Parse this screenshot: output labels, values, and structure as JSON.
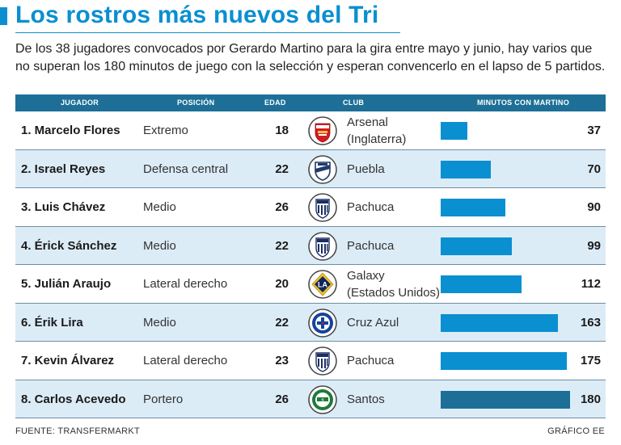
{
  "header": {
    "title": "Los rostros más nuevos del Tri",
    "subtitle": "De los 38 jugadores convocados por Gerardo Martino para la gira entre mayo y junio, hay varios que no superan los 180 minutos de juego con la selección y esperan convencerlo en el lapso de 5 partidos."
  },
  "columns": {
    "player": "JUGADOR",
    "position": "POSICIÓN",
    "age": "EDAD",
    "club": "CLUB",
    "minutes": "MINUTOS CON MARTINO"
  },
  "rows": [
    {
      "name": "1. Marcelo Flores",
      "position": "Extremo",
      "age": "18",
      "club": "Arsenal\n(Inglaterra)",
      "minutes": "37",
      "logo": "arsenal-logo"
    },
    {
      "name": "2. Israel Reyes",
      "position": "Defensa central",
      "age": "22",
      "club": "Puebla",
      "minutes": "70",
      "logo": "puebla-logo"
    },
    {
      "name": "3. Luis Chávez",
      "position": "Medio",
      "age": "26",
      "club": "Pachuca",
      "minutes": "90",
      "logo": "pachuca-logo"
    },
    {
      "name": "4. Érick Sánchez",
      "position": "Medio",
      "age": "22",
      "club": "Pachuca",
      "minutes": "99",
      "logo": "pachuca-logo"
    },
    {
      "name": "5. Julián Araujo",
      "position": "Lateral derecho",
      "age": "20",
      "club": "Galaxy\n(Estados Unidos)",
      "minutes": "112",
      "logo": "galaxy-logo"
    },
    {
      "name": "6. Érik Lira",
      "position": "Medio",
      "age": "22",
      "club": "Cruz Azul",
      "minutes": "163",
      "logo": "cruz-azul-logo"
    },
    {
      "name": "7. Kevin Álvarez",
      "position": "Lateral derecho",
      "age": "23",
      "club": "Pachuca",
      "minutes": "175",
      "logo": "pachuca-logo"
    },
    {
      "name": "8. Carlos Acevedo",
      "position": "Portero",
      "age": "26",
      "club": "Santos",
      "minutes": "180",
      "logo": "santos-logo"
    }
  ],
  "chart_data": {
    "type": "bar",
    "orientation": "horizontal",
    "title": "MINUTOS CON MARTINO",
    "categories": [
      "1. Marcelo Flores",
      "2. Israel Reyes",
      "3. Luis Chávez",
      "4. Érick Sánchez",
      "5. Julián Araujo",
      "6. Érik Lira",
      "7. Kevin Álvarez",
      "8. Carlos Acevedo"
    ],
    "values": [
      37,
      70,
      90,
      99,
      112,
      163,
      175,
      180
    ],
    "xlim": [
      0,
      180
    ]
  },
  "colors": {
    "accent": "#0a8fd1",
    "header_bg": "#1d6f97",
    "alt_row": "#dcecf7",
    "bar": "#0a8fd1",
    "bar_max": "#1d6f97"
  },
  "footer": {
    "source": "FUENTE: TRANSFERMARKT",
    "credit": "GRÁFICO EE"
  }
}
